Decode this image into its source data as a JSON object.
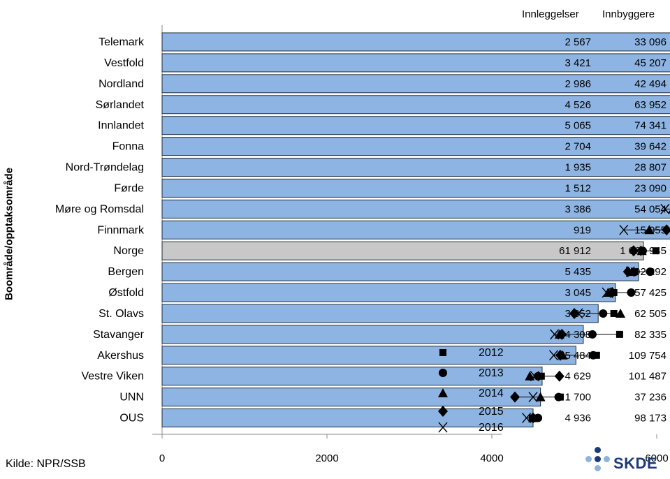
{
  "chart_data": {
    "type": "bar",
    "ylabel": "Boområde/opptaksområde",
    "xlim": [
      0,
      8000
    ],
    "xticks": [
      0,
      2000,
      4000,
      6000,
      8000
    ],
    "bar_color": "#8db4e2",
    "highlight_color": "#c8c8c8",
    "highlight_category": "Norge",
    "categories": [
      "Telemark",
      "Vestfold",
      "Nordland",
      "Sørlandet",
      "Innlandet",
      "Fonna",
      "Nord-Trøndelag",
      "Førde",
      "Møre og Romsdal",
      "Finnmark",
      "Norge",
      "Bergen",
      "Østfold",
      "St. Olavs",
      "Stavanger",
      "Akershus",
      "Vestre Viken",
      "UNN",
      "OUS"
    ],
    "values": [
      7960,
      7770,
      7190,
      7110,
      7030,
      6910,
      6860,
      6720,
      6380,
      6200,
      5840,
      5780,
      5500,
      5290,
      5110,
      5020,
      4610,
      4590,
      4500
    ],
    "series": [
      {
        "name": "2012",
        "marker": "square",
        "values": [
          8200,
          7650,
          7540,
          7600,
          7150,
          6880,
          6700,
          7440,
          6700,
          6750,
          5990,
          5730,
          5480,
          5480,
          5550,
          5270,
          4600,
          4830,
          4490
        ]
      },
      {
        "name": "2013",
        "marker": "circle",
        "values": [
          6850,
          7700,
          7480,
          7380,
          6780,
          7080,
          7230,
          7030,
          6520,
          6510,
          5830,
          5920,
          5690,
          5350,
          5220,
          5230,
          4560,
          4810,
          4560
        ]
      },
      {
        "name": "2014",
        "marker": "triangle",
        "values": [
          8000,
          7900,
          7150,
          6890,
          6870,
          6630,
          6780,
          6430,
          6200,
          5910,
          5820,
          5700,
          5410,
          5560,
          4820,
          4860,
          4460,
          4590,
          4500
        ]
      },
      {
        "name": "2015",
        "marker": "diamond",
        "values": [
          8080,
          7730,
          6900,
          6740,
          7190,
          7010,
          6750,
          6400,
          6420,
          6120,
          5720,
          5650,
          5460,
          5000,
          4850,
          4830,
          4820,
          4280,
          4500
        ]
      },
      {
        "name": "2016",
        "marker": "x",
        "values": [
          7900,
          7680,
          6460,
          6820,
          6990,
          6930,
          6830,
          6260,
          6100,
          5600,
          5760,
          5680,
          5390,
          5050,
          4760,
          4750,
          4520,
          4500,
          4420
        ]
      }
    ],
    "table": {
      "headers": [
        "Innleggelser",
        "Innbyggere"
      ],
      "innleggelser": [
        "2 567",
        "3 421",
        "2 986",
        "4 526",
        "5 065",
        "2 704",
        "1 935",
        "1 512",
        "3 386",
        "919",
        "61 912",
        "5 435",
        "3 045",
        "3 352",
        "4 308",
        "5 484",
        "4 629",
        "1 700",
        "4 936"
      ],
      "innbyggere": [
        "33 096",
        "45 207",
        "42 494",
        "63 952",
        "74 341",
        "39 642",
        "28 807",
        "23 090",
        "54 054",
        "15 055",
        "1 060 945",
        "92 292",
        "57 425",
        "62 505",
        "82 335",
        "109 754",
        "101 487",
        "37 236",
        "98 173"
      ]
    }
  },
  "source": "Kilde: NPR/SSB",
  "logo_text": "SKDE"
}
